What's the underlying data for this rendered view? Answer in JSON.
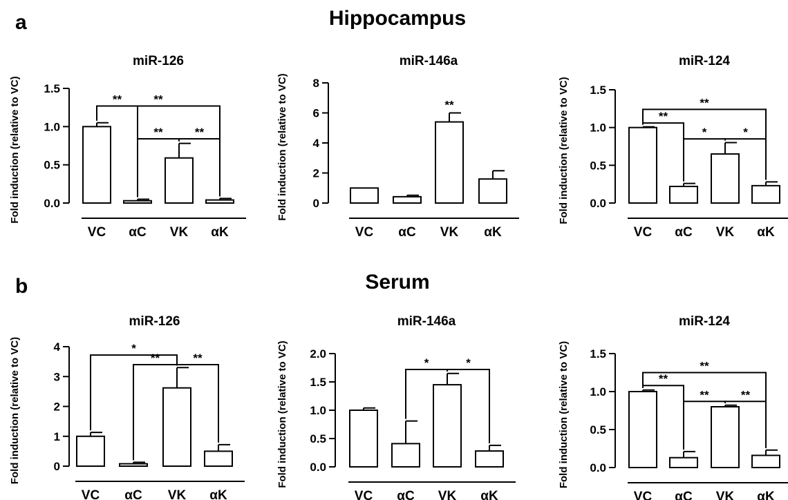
{
  "panels": [
    {
      "letter": "a",
      "section_title": "Hippocampus"
    },
    {
      "letter": "b",
      "section_title": "Serum"
    }
  ],
  "chart_data": [
    {
      "type": "bar",
      "section": "Hippocampus",
      "title": "miR-126",
      "categories": [
        "VC",
        "αC",
        "VK",
        "αK"
      ],
      "values": [
        1.0,
        0.03,
        0.59,
        0.04
      ],
      "errors": [
        0.05,
        0.02,
        0.19,
        0.02
      ],
      "ylabel": "Fold induction (relative to VC)",
      "ylim": [
        0,
        1.5
      ],
      "yticks": [
        "0.0",
        "0.5",
        "1.0",
        "1.5"
      ],
      "comparisons": [
        {
          "from": 0,
          "to": 1,
          "label": "**",
          "level": 1.27
        },
        {
          "from": 0,
          "to": 3,
          "label": "**",
          "level": 1.27
        },
        {
          "from": 1,
          "to": 2,
          "label": "**",
          "level": 0.84
        },
        {
          "from": 2,
          "to": 3,
          "label": "**",
          "level": 0.84
        }
      ],
      "annotations": []
    },
    {
      "type": "bar",
      "section": "Hippocampus",
      "title": "miR-146a",
      "categories": [
        "VC",
        "αC",
        "VK",
        "αK"
      ],
      "values": [
        1.0,
        0.42,
        5.4,
        1.6
      ],
      "errors": [
        0.0,
        0.1,
        0.6,
        0.55
      ],
      "ylabel": "Fold induction (relative to VC)",
      "ylim": [
        0,
        8
      ],
      "yticks": [
        "0",
        "2",
        "4",
        "6",
        "8"
      ],
      "comparisons": [],
      "annotations": [
        {
          "index": 2,
          "label": "**"
        }
      ]
    },
    {
      "type": "bar",
      "section": "Hippocampus",
      "title": "miR-124",
      "categories": [
        "VC",
        "αC",
        "VK",
        "αK"
      ],
      "values": [
        1.0,
        0.22,
        0.65,
        0.23
      ],
      "errors": [
        0.01,
        0.04,
        0.15,
        0.05
      ],
      "ylabel": "Fold induction (relative to VC)",
      "ylim": [
        0,
        1.5
      ],
      "yticks": [
        "0.0",
        "0.5",
        "1.0",
        "1.5"
      ],
      "comparisons": [
        {
          "from": 0,
          "to": 1,
          "label": "**",
          "level": 1.06
        },
        {
          "from": 0,
          "to": 3,
          "label": "**",
          "level": 1.24
        },
        {
          "from": 1,
          "to": 2,
          "label": "*",
          "level": 0.85
        },
        {
          "from": 2,
          "to": 3,
          "label": "*",
          "level": 0.85
        }
      ],
      "annotations": []
    },
    {
      "type": "bar",
      "section": "Serum",
      "title": "miR-126",
      "categories": [
        "VC",
        "αC",
        "VK",
        "αK"
      ],
      "values": [
        1.0,
        0.08,
        2.62,
        0.5
      ],
      "errors": [
        0.13,
        0.05,
        0.68,
        0.22
      ],
      "ylabel": "Fold induction (relative to VC)",
      "ylim": [
        0,
        4
      ],
      "yticks": [
        "0",
        "1",
        "2",
        "3",
        "4"
      ],
      "comparisons": [
        {
          "from": 0,
          "to": 2,
          "label": "*",
          "level": 3.72
        },
        {
          "from": 1,
          "to": 2,
          "label": "**",
          "level": 3.4
        },
        {
          "from": 2,
          "to": 3,
          "label": "**",
          "level": 3.4
        }
      ],
      "annotations": []
    },
    {
      "type": "bar",
      "section": "Serum",
      "title": "miR-146a",
      "categories": [
        "VC",
        "αC",
        "VK",
        "αK"
      ],
      "values": [
        1.0,
        0.41,
        1.45,
        0.28
      ],
      "errors": [
        0.04,
        0.4,
        0.2,
        0.1
      ],
      "ylabel": "Fold induction (relative to VC)",
      "ylim": [
        0,
        2.0
      ],
      "yticks": [
        "0.0",
        "0.5",
        "1.0",
        "1.5",
        "2.0"
      ],
      "comparisons": [
        {
          "from": 1,
          "to": 2,
          "label": "*",
          "level": 1.72
        },
        {
          "from": 2,
          "to": 3,
          "label": "*",
          "level": 1.72
        }
      ],
      "annotations": []
    },
    {
      "type": "bar",
      "section": "Serum",
      "title": "miR-124",
      "categories": [
        "VC",
        "αC",
        "VK",
        "αK"
      ],
      "values": [
        1.0,
        0.13,
        0.8,
        0.16
      ],
      "errors": [
        0.02,
        0.08,
        0.02,
        0.07
      ],
      "ylabel": "Fold induction (relative to VC)",
      "ylim": [
        0,
        1.5
      ],
      "yticks": [
        "0.0",
        "0.5",
        "1.0",
        "1.5"
      ],
      "comparisons": [
        {
          "from": 0,
          "to": 1,
          "label": "**",
          "level": 1.08
        },
        {
          "from": 0,
          "to": 3,
          "label": "**",
          "level": 1.25
        },
        {
          "from": 1,
          "to": 2,
          "label": "**",
          "level": 0.87
        },
        {
          "from": 2,
          "to": 3,
          "label": "**",
          "level": 0.87
        }
      ],
      "annotations": []
    }
  ]
}
